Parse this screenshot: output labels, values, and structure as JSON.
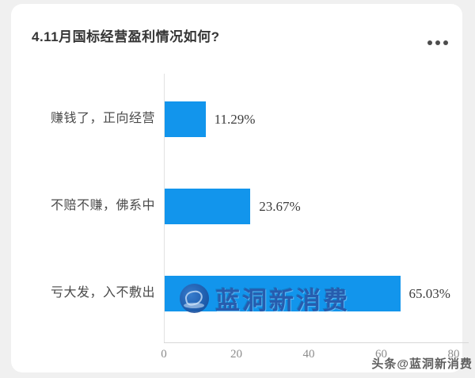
{
  "card": {
    "title": "4.11月国标经营盈利情况如何?"
  },
  "menu": {
    "icon": "ellipsis-menu"
  },
  "chart_data": {
    "type": "bar",
    "orientation": "horizontal",
    "title": "4.11月国标经营盈利情况如何?",
    "categories": [
      "赚钱了，正向经营",
      "不赔不赚，佛系中",
      "亏大发，入不敷出"
    ],
    "values": [
      11.29,
      23.67,
      65.03
    ],
    "value_labels": [
      "11.29%",
      "23.67%",
      "65.03%"
    ],
    "xticks": [
      0,
      20,
      40,
      60,
      80
    ],
    "xtick_labels": [
      "0",
      "20",
      "40",
      "60",
      "80"
    ],
    "xlim": [
      0,
      80
    ],
    "grid": false,
    "legend": "none",
    "bar_color": "#1295ec"
  },
  "watermarks": {
    "center_text": "蓝洞新消费",
    "bottom_right": "头条@蓝洞新消费"
  },
  "colors": {
    "bar": "#1295ec",
    "watermark_blue": "#2a56a8",
    "axis_line": "#e2e2e2"
  },
  "layout": {
    "axis_left": 193,
    "axis_width": 366,
    "bar_tops": [
      123,
      233,
      343
    ],
    "label_tops": [
      135,
      245,
      355
    ]
  }
}
